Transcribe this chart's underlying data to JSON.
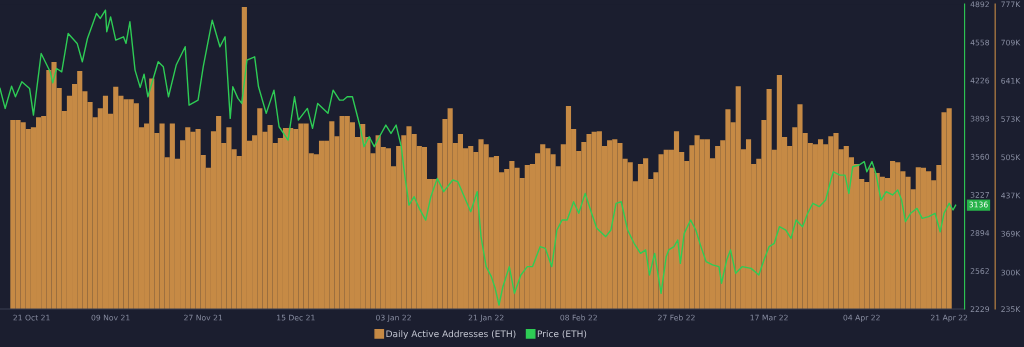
{
  "chart_data": {
    "type": "bar",
    "legend": "bottom",
    "xlim": [
      "2021-10-18T12:00",
      "2022-04-24T00:00"
    ],
    "xticks": [
      {
        "value": "2021-10-21",
        "label": "21 Oct 21"
      },
      {
        "value": "2021-11-09",
        "label": "09 Nov 21"
      },
      {
        "value": "2021-11-27",
        "label": "27 Nov 21"
      },
      {
        "value": "2021-12-15",
        "label": "15 Dec 21"
      },
      {
        "value": "2022-01-03",
        "label": "03 Jan 22"
      },
      {
        "value": "2022-01-21",
        "label": "21 Jan 22"
      },
      {
        "value": "2022-02-08",
        "label": "08 Feb 22"
      },
      {
        "value": "2022-02-27",
        "label": "27 Feb 22"
      },
      {
        "value": "2022-03-17",
        "label": "17 Mar 22"
      },
      {
        "value": "2022-04-04",
        "label": "04 Apr 22"
      },
      {
        "value": "2022-04-21",
        "label": "21 Apr 22"
      }
    ],
    "ylim": [
      235,
      777
    ],
    "yticks": [
      {
        "value": 235,
        "label": "235K"
      },
      {
        "value": 300,
        "label": "300K"
      },
      {
        "value": 369,
        "label": "369K"
      },
      {
        "value": 437,
        "label": "437K"
      },
      {
        "value": 505,
        "label": "505K"
      },
      {
        "value": 573,
        "label": "573K"
      },
      {
        "value": 641,
        "label": "641K"
      },
      {
        "value": 709,
        "label": "709K"
      },
      {
        "value": 777,
        "label": "777K"
      }
    ],
    "y2lim": [
      2229,
      4892
    ],
    "y2ticks": [
      2229,
      2562,
      2894,
      3227,
      3560,
      3893,
      4226,
      4558,
      4892
    ],
    "annotations": [
      "3136"
    ],
    "series": [
      {
        "name": "Daily Active Addresses (ETH)",
        "axis": "y",
        "color": "#c68a45",
        "x": [
          "2021-10-21",
          "2021-10-22",
          "2021-10-23",
          "2021-10-24",
          "2021-10-25",
          "2021-10-26",
          "2021-10-27",
          "2021-10-28",
          "2021-10-29",
          "2021-10-30",
          "2021-10-31",
          "2021-11-01",
          "2021-11-02",
          "2021-11-03",
          "2021-11-04",
          "2021-11-05",
          "2021-11-06",
          "2021-11-07",
          "2021-11-08",
          "2021-11-09",
          "2021-11-10",
          "2021-11-11",
          "2021-11-12",
          "2021-11-13",
          "2021-11-14",
          "2021-11-15",
          "2021-11-16",
          "2021-11-17",
          "2021-11-18",
          "2021-11-19",
          "2021-11-20",
          "2021-11-21",
          "2021-11-22",
          "2021-11-23",
          "2021-11-24",
          "2021-11-25",
          "2021-11-26",
          "2021-11-27",
          "2021-11-28",
          "2021-11-29",
          "2021-11-30",
          "2021-12-01",
          "2021-12-02",
          "2021-12-03",
          "2021-12-04",
          "2021-12-05",
          "2021-12-06",
          "2021-12-07",
          "2021-12-08",
          "2021-12-09",
          "2021-12-10",
          "2021-12-11",
          "2021-12-12",
          "2021-12-13",
          "2021-12-14",
          "2021-12-15",
          "2021-12-16",
          "2021-12-17",
          "2021-12-18",
          "2021-12-19",
          "2021-12-20",
          "2021-12-21",
          "2021-12-22",
          "2021-12-23",
          "2021-12-24",
          "2021-12-25",
          "2021-12-26",
          "2021-12-27",
          "2021-12-28",
          "2021-12-29",
          "2021-12-30",
          "2021-12-31",
          "2022-01-01",
          "2022-01-02",
          "2022-01-03",
          "2022-01-04",
          "2022-01-05",
          "2022-01-06",
          "2022-01-07",
          "2022-01-08",
          "2022-01-09",
          "2022-01-10",
          "2022-01-11",
          "2022-01-12",
          "2022-01-13",
          "2022-01-14",
          "2022-01-15",
          "2022-01-16",
          "2022-01-17",
          "2022-01-18",
          "2022-01-19",
          "2022-01-20",
          "2022-01-21",
          "2022-01-22",
          "2022-01-23",
          "2022-01-24",
          "2022-01-25",
          "2022-01-26",
          "2022-01-27",
          "2022-01-28",
          "2022-01-29",
          "2022-01-30",
          "2022-01-31",
          "2022-02-01",
          "2022-02-02",
          "2022-02-03",
          "2022-02-04",
          "2022-02-05",
          "2022-02-06",
          "2022-02-07",
          "2022-02-08",
          "2022-02-09",
          "2022-02-10",
          "2022-02-11",
          "2022-02-12",
          "2022-02-13",
          "2022-02-14",
          "2022-02-15",
          "2022-02-16",
          "2022-02-17",
          "2022-02-18",
          "2022-02-19",
          "2022-02-20",
          "2022-02-21",
          "2022-02-22",
          "2022-02-23",
          "2022-02-24",
          "2022-02-25",
          "2022-02-26",
          "2022-02-27",
          "2022-02-28",
          "2022-03-01",
          "2022-03-02",
          "2022-03-03",
          "2022-03-04",
          "2022-03-05",
          "2022-03-06",
          "2022-03-07",
          "2022-03-08",
          "2022-03-09",
          "2022-03-10",
          "2022-03-11",
          "2022-03-12",
          "2022-03-13",
          "2022-03-14",
          "2022-03-15",
          "2022-03-16",
          "2022-03-17",
          "2022-03-18",
          "2022-03-19",
          "2022-03-20",
          "2022-03-21",
          "2022-03-22",
          "2022-03-23",
          "2022-03-24",
          "2022-03-25",
          "2022-03-26",
          "2022-03-27",
          "2022-03-28",
          "2022-03-29",
          "2022-03-30",
          "2022-03-31",
          "2022-04-01",
          "2022-04-02",
          "2022-04-03",
          "2022-04-04",
          "2022-04-05",
          "2022-04-06",
          "2022-04-07",
          "2022-04-08",
          "2022-04-09",
          "2022-04-10",
          "2022-04-11",
          "2022-04-12",
          "2022-04-13",
          "2022-04-14",
          "2022-04-15",
          "2022-04-16",
          "2022-04-17",
          "2022-04-18",
          "2022-04-19",
          "2022-04-20",
          "2022-04-21"
        ],
        "values": [
          571,
          571,
          567,
          555,
          558,
          576,
          578,
          660,
          674,
          628,
          587,
          614,
          635,
          658,
          622,
          603,
          576,
          592,
          614,
          582,
          630,
          614,
          608,
          608,
          601,
          558,
          565,
          645,
          548,
          565,
          505,
          565,
          502,
          535,
          558,
          550,
          555,
          509,
          486,
          551,
          578,
          530,
          558,
          519,
          507,
          772,
          534,
          544,
          592,
          550,
          562,
          530,
          539,
          557,
          557,
          555,
          565,
          565,
          512,
          510,
          534,
          534,
          569,
          542,
          578,
          578,
          567,
          541,
          564,
          541,
          512,
          544,
          523,
          521,
          489,
          525,
          544,
          560,
          546,
          525,
          523,
          466,
          466,
          530,
          573,
          592,
          530,
          546,
          521,
          525,
          514,
          537,
          528,
          505,
          507,
          478,
          484,
          498,
          486,
          468,
          491,
          493,
          512,
          528,
          521,
          510,
          489,
          528,
          596,
          555,
          516,
          532,
          546,
          550,
          551,
          525,
          535,
          537,
          530,
          502,
          496,
          462,
          493,
          503,
          466,
          478,
          510,
          518,
          518,
          551,
          514,
          498,
          526,
          544,
          537,
          537,
          503,
          525,
          535,
          590,
          567,
          631,
          519,
          537,
          493,
          502,
          571,
          626,
          518,
          651,
          541,
          525,
          558,
          599,
          548,
          530,
          528,
          537,
          528,
          542,
          548,
          519,
          525,
          505,
          493,
          466,
          461,
          486,
          477,
          470,
          468,
          498,
          496,
          480,
          470,
          448,
          487,
          486,
          480,
          464,
          491,
          585,
          592
        ]
      },
      {
        "name": "Price (ETH)",
        "type": "line",
        "axis": "y2",
        "color": "#2ecc55",
        "x": [
          "2021-10-18T12:00",
          "2021-10-19T12:00",
          "2021-10-20T18:00",
          "2021-10-21T12:00",
          "2021-10-22T18:00",
          "2021-10-24T06:00",
          "2021-10-25T00:00",
          "2021-10-26T12:00",
          "2021-10-28T06:00",
          "2021-10-28T18:00",
          "2021-10-29T12:00",
          "2021-10-30T12:00",
          "2021-10-31T18:00",
          "2021-11-02T12:00",
          "2021-11-03T12:00",
          "2021-11-04T12:00",
          "2021-11-06T06:00",
          "2021-11-07T00:00",
          "2021-11-08T00:00",
          "2021-11-08T06:00",
          "2021-11-09T00:00",
          "2021-11-10T00:00",
          "2021-11-11T12:00",
          "2021-11-12T00:00",
          "2021-11-12T18:00",
          "2021-11-13T18:00",
          "2021-11-14T18:00",
          "2021-11-15T12:00",
          "2021-11-16T06:00",
          "2021-11-18T06:00",
          "2021-11-19T06:00",
          "2021-11-20T06:00",
          "2021-11-21T18:00",
          "2021-11-23T12:00",
          "2021-11-24T06:00",
          "2021-11-26T00:00",
          "2021-11-27T00:00",
          "2021-11-28T18:00",
          "2021-11-30T06:00",
          "2021-12-01T06:00",
          "2021-12-02T06:00",
          "2021-12-02T18:00",
          "2021-12-03T18:00",
          "2021-12-04T12:00",
          "2021-12-05T12:00",
          "2021-12-07T00:00",
          "2021-12-07T18:00",
          "2021-12-09T06:00",
          "2021-12-10T18:00",
          "2021-12-11T18:00",
          "2021-12-13T12:00",
          "2021-12-14T18:00",
          "2021-12-15T12:00",
          "2021-12-17T06:00",
          "2021-12-18T06:00",
          "2021-12-19T06:00",
          "2021-12-21T06:00",
          "2021-12-22T06:00",
          "2021-12-23T12:00",
          "2021-12-24T06:00",
          "2021-12-25T00:00",
          "2021-12-26T00:00",
          "2021-12-27T12:00",
          "2021-12-28T06:00",
          "2021-12-29T06:00",
          "2021-12-30T06:00",
          "2021-12-31T06:00",
          "2022-01-01T12:00",
          "2022-01-02T12:00",
          "2022-01-03T12:00",
          "2022-01-04T12:00",
          "2022-01-05T00:00",
          "2022-01-06T00:00",
          "2022-01-07T00:00",
          "2022-01-08T00:00",
          "2022-01-09T06:00",
          "2022-01-10T06:00",
          "2022-01-11T12:00",
          "2022-01-12T18:00",
          "2022-01-14T12:00",
          "2022-01-15T12:00",
          "2022-01-16T18:00",
          "2022-01-18T00:00",
          "2022-01-19T06:00",
          "2022-01-20T00:00",
          "2022-01-21T00:00",
          "2022-01-22T00:00",
          "2022-01-22T18:00",
          "2022-01-23T12:00",
          "2022-01-24T06:00",
          "2022-01-25T12:00",
          "2022-01-26T12:00",
          "2022-01-27T18:00",
          "2022-01-29T00:00",
          "2022-01-30T00:00",
          "2022-01-31T12:00",
          "2022-02-01T12:00",
          "2022-02-02T18:00",
          "2022-02-03T18:00",
          "2022-02-04T18:00",
          "2022-02-05T18:00",
          "2022-02-07T00:00",
          "2022-02-08T00:00",
          "2022-02-09T06:00",
          "2022-02-10T12:00",
          "2022-02-11T12:00",
          "2022-02-13T06:00",
          "2022-02-14T06:00",
          "2022-02-15T06:00",
          "2022-02-16T06:00",
          "2022-02-17T12:00",
          "2022-02-18T18:00",
          "2022-02-20T00:00",
          "2022-02-21T00:00",
          "2022-02-21T18:00",
          "2022-02-22T18:00",
          "2022-02-24T00:00",
          "2022-02-25T00:00",
          "2022-02-25T12:00",
          "2022-02-26T12:00",
          "2022-02-27T06:00",
          "2022-02-27T18:00",
          "2022-02-28T12:00",
          "2022-03-01T18:00",
          "2022-03-02T18:00",
          "2022-03-03T18:00",
          "2022-03-04T18:00",
          "2022-03-06T00:00",
          "2022-03-07T06:00",
          "2022-03-07T18:00",
          "2022-03-08T18:00",
          "2022-03-09T12:00",
          "2022-03-10T12:00",
          "2022-03-11T18:00",
          "2022-03-13T12:00",
          "2022-03-15T00:00",
          "2022-03-16T00:00",
          "2022-03-17T00:00",
          "2022-03-18T00:00",
          "2022-03-19T00:00",
          "2022-03-20T06:00",
          "2022-03-21T06:00",
          "2022-03-22T06:00",
          "2022-03-23T12:00",
          "2022-03-24T12:00",
          "2022-03-25T12:00",
          "2022-03-26T18:00",
          "2022-03-28T00:00",
          "2022-03-29T00:00",
          "2022-03-29T12:00",
          "2022-03-30T18:00",
          "2022-03-31T18:00",
          "2022-04-01T12:00",
          "2022-04-02T06:00",
          "2022-04-03T12:00",
          "2022-04-04T12:00",
          "2022-04-05T00:00",
          "2022-04-06T00:00",
          "2022-04-06T18:00",
          "2022-04-07T18:00",
          "2022-04-08T18:00",
          "2022-04-10T00:00",
          "2022-04-11T00:00",
          "2022-04-11T18:00",
          "2022-04-12T12:00",
          "2022-04-13T12:00",
          "2022-04-14T18:00",
          "2022-04-15T18:00",
          "2022-04-17T00:00",
          "2022-04-18T06:00",
          "2022-04-19T06:00",
          "2022-04-20T00:00",
          "2022-04-21T00:00",
          "2022-04-21T18:00",
          "2022-04-22T06:00"
        ],
        "values": [
          4156,
          3981,
          4176,
          4083,
          4214,
          4156,
          3923,
          4461,
          4301,
          4205,
          4330,
          4301,
          4636,
          4549,
          4389,
          4592,
          4811,
          4767,
          4840,
          4651,
          4781,
          4578,
          4607,
          4549,
          4738,
          4316,
          4165,
          4281,
          4083,
          4389,
          4345,
          4083,
          4360,
          4520,
          4010,
          4054,
          4345,
          4752,
          4520,
          4607,
          3894,
          4170,
          4069,
          4025,
          4403,
          4432,
          4170,
          3938,
          4141,
          3821,
          3705,
          4083,
          3879,
          3981,
          3807,
          4025,
          3938,
          4141,
          4054,
          4054,
          4083,
          4083,
          3821,
          3647,
          3734,
          3647,
          3734,
          3836,
          3763,
          3836,
          3647,
          3457,
          3137,
          3210,
          3108,
          3006,
          3210,
          3370,
          3254,
          3356,
          3341,
          3210,
          3079,
          3254,
          2861,
          2599,
          2512,
          2410,
          2264,
          2424,
          2599,
          2366,
          2526,
          2599,
          2599,
          2774,
          2759,
          2599,
          2919,
          3006,
          3006,
          3166,
          3065,
          3239,
          3065,
          2934,
          2861,
          2919,
          3152,
          3166,
          2919,
          2803,
          2715,
          2745,
          2526,
          2715,
          2366,
          2686,
          2745,
          2774,
          2832,
          2628,
          2890,
          3006,
          2919,
          2774,
          2643,
          2614,
          2599,
          2454,
          2657,
          2745,
          2541,
          2599,
          2584,
          2526,
          2657,
          2774,
          2803,
          2948,
          2919,
          2846,
          3006,
          2948,
          3065,
          3152,
          3123,
          3181,
          3356,
          3428,
          3399,
          3399,
          3239,
          3472,
          3487,
          3516,
          3428,
          3516,
          3414,
          3181,
          3254,
          3225,
          3268,
          3181,
          2992,
          3065,
          3108,
          3021,
          3036,
          3065,
          2904,
          3065,
          3152,
          3094,
          3136
        ]
      }
    ]
  }
}
